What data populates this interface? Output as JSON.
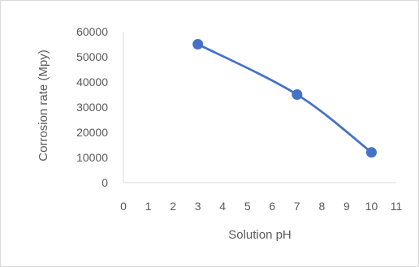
{
  "chart_data": {
    "type": "scatter",
    "mode": "lines+markers",
    "smooth": true,
    "title": "",
    "xlabel": "Solution pH",
    "ylabel": "Corrosion rate (Mpy)",
    "xlim": [
      0,
      11
    ],
    "ylim": [
      0,
      60000
    ],
    "xticks": [
      0,
      1,
      2,
      3,
      4,
      5,
      6,
      7,
      8,
      9,
      10,
      11
    ],
    "yticks": [
      0,
      10000,
      20000,
      30000,
      40000,
      50000,
      60000
    ],
    "grid": false,
    "legend": false,
    "series": [
      {
        "x": [
          3,
          7,
          10
        ],
        "y": [
          55000,
          35000,
          12000
        ]
      }
    ],
    "colors": {
      "series": "#4472c4",
      "axis": "#d9d9d9",
      "text": "#595959"
    }
  }
}
